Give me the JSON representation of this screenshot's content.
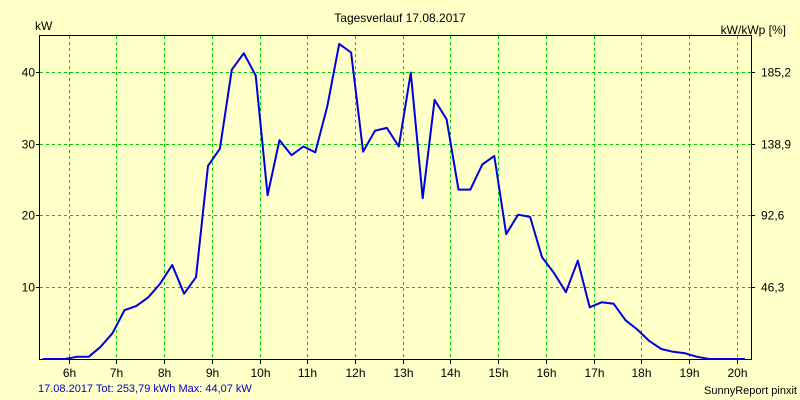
{
  "chart_data": {
    "type": "line",
    "title": "Tagesverlauf 17.08.2017",
    "ylabel": "kW",
    "ylabel_right": "kW/kWp [%]",
    "x_tick_labels": [
      "6h",
      "7h",
      "8h",
      "9h",
      "10h",
      "11h",
      "12h",
      "13h",
      "14h",
      "15h",
      "16h",
      "17h",
      "18h",
      "19h",
      "20h"
    ],
    "x_ticks": [
      6,
      7,
      8,
      9,
      10,
      11,
      12,
      13,
      14,
      15,
      16,
      17,
      18,
      19,
      20
    ],
    "xlim": [
      5.4,
      20.3
    ],
    "ylim": [
      0,
      45
    ],
    "y_ticks": [
      10,
      20,
      30,
      40
    ],
    "y_tick_labels": [
      "10",
      "20",
      "30",
      "40"
    ],
    "y_right_tick_labels": [
      "46,3",
      "92,6",
      "138,9",
      "185,2"
    ],
    "grid": true,
    "grid_color": "#00C800",
    "line_color": "#0000DC",
    "background": "#FFFFC8",
    "series": [
      {
        "x": [
          5.45,
          5.67,
          5.92,
          6.17,
          6.42,
          6.67,
          6.92,
          7.17,
          7.42,
          7.67,
          7.92,
          8.17,
          8.42,
          8.67,
          8.92,
          9.17,
          9.42,
          9.67,
          9.92,
          10.17,
          10.42,
          10.67,
          10.92,
          11.17,
          11.42,
          11.67,
          11.92,
          12.17,
          12.42,
          12.67,
          12.92,
          13.17,
          13.42,
          13.67,
          13.92,
          14.17,
          14.42,
          14.67,
          14.92,
          15.17,
          15.42,
          15.67,
          15.92,
          16.17,
          16.42,
          16.67,
          16.92,
          17.17,
          17.42,
          17.67,
          17.92,
          18.17,
          18.42,
          18.67,
          18.92,
          19.17,
          19.42,
          19.67,
          19.92,
          20.17
        ],
        "y": [
          0,
          0,
          0,
          0.3,
          0.3,
          1.7,
          3.6,
          6.8,
          7.4,
          8.6,
          10.5,
          13.1,
          9.1,
          11.4,
          26.9,
          29.3,
          40.3,
          42.6,
          39.5,
          22.8,
          30.5,
          28.4,
          29.6,
          28.8,
          35.2,
          43.9,
          42.7,
          28.9,
          31.8,
          32.2,
          29.6,
          39.9,
          22.4,
          36.1,
          33.4,
          23.6,
          23.6,
          27.1,
          28.3,
          17.4,
          20.1,
          19.8,
          14.2,
          12.0,
          9.3,
          13.7,
          7.2,
          7.9,
          7.7,
          5.4,
          4.1,
          2.5,
          1.4,
          1.0,
          0.8,
          0.3,
          0,
          0,
          0,
          0
        ]
      }
    ]
  },
  "footer": {
    "summary": "17.08.2017 Tot: 253,79 kWh Max: 44,07 kW",
    "brand": "SunnyReport pinxit"
  }
}
